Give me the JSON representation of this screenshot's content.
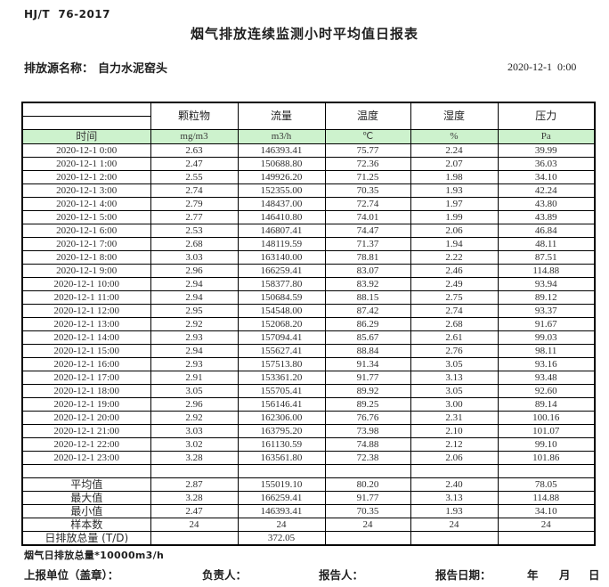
{
  "header": {
    "standard": "HJ/T  76-2017",
    "title": "烟气排放连续监测小时平均值日报表",
    "source_label": "排放源名称：",
    "source_name": "自力水泥窑头",
    "datetime": "2020-12-1  0:00"
  },
  "table": {
    "time_header": "时间",
    "columns": [
      {
        "name": "颗粒物",
        "unit": "mg/m3"
      },
      {
        "name": "流量",
        "unit": "m3/h"
      },
      {
        "name": "温度",
        "unit": "℃"
      },
      {
        "name": "湿度",
        "unit": "%"
      },
      {
        "name": "压力",
        "unit": "Pa"
      }
    ],
    "rows": [
      {
        "time": "2020-12-1 0:00",
        "values": [
          "2.63",
          "146393.41",
          "75.77",
          "2.24",
          "39.99"
        ]
      },
      {
        "time": "2020-12-1 1:00",
        "values": [
          "2.47",
          "150688.80",
          "72.36",
          "2.07",
          "36.03"
        ]
      },
      {
        "time": "2020-12-1 2:00",
        "values": [
          "2.55",
          "149926.20",
          "71.25",
          "1.98",
          "34.10"
        ]
      },
      {
        "time": "2020-12-1 3:00",
        "values": [
          "2.74",
          "152355.00",
          "70.35",
          "1.93",
          "42.24"
        ]
      },
      {
        "time": "2020-12-1 4:00",
        "values": [
          "2.79",
          "148437.00",
          "72.74",
          "1.97",
          "43.80"
        ]
      },
      {
        "time": "2020-12-1 5:00",
        "values": [
          "2.77",
          "146410.80",
          "74.01",
          "1.99",
          "43.89"
        ]
      },
      {
        "time": "2020-12-1 6:00",
        "values": [
          "2.53",
          "146807.41",
          "74.47",
          "2.06",
          "46.84"
        ]
      },
      {
        "time": "2020-12-1 7:00",
        "values": [
          "2.68",
          "148119.59",
          "71.37",
          "1.94",
          "48.11"
        ]
      },
      {
        "time": "2020-12-1 8:00",
        "values": [
          "3.03",
          "163140.00",
          "78.81",
          "2.22",
          "87.51"
        ]
      },
      {
        "time": "2020-12-1 9:00",
        "values": [
          "2.96",
          "166259.41",
          "83.07",
          "2.46",
          "114.88"
        ]
      },
      {
        "time": "2020-12-1 10:00",
        "values": [
          "2.94",
          "158377.80",
          "83.92",
          "2.49",
          "93.94"
        ]
      },
      {
        "time": "2020-12-1 11:00",
        "values": [
          "2.94",
          "150684.59",
          "88.15",
          "2.75",
          "89.12"
        ]
      },
      {
        "time": "2020-12-1 12:00",
        "values": [
          "2.95",
          "154548.00",
          "87.42",
          "2.74",
          "93.37"
        ]
      },
      {
        "time": "2020-12-1 13:00",
        "values": [
          "2.92",
          "152068.20",
          "86.29",
          "2.68",
          "91.67"
        ]
      },
      {
        "time": "2020-12-1 14:00",
        "values": [
          "2.93",
          "157094.41",
          "85.67",
          "2.61",
          "99.03"
        ]
      },
      {
        "time": "2020-12-1 15:00",
        "values": [
          "2.94",
          "155627.41",
          "88.84",
          "2.76",
          "98.11"
        ]
      },
      {
        "time": "2020-12-1 16:00",
        "values": [
          "2.93",
          "157513.80",
          "91.34",
          "3.05",
          "93.16"
        ]
      },
      {
        "time": "2020-12-1 17:00",
        "values": [
          "2.91",
          "153361.20",
          "91.77",
          "3.13",
          "93.48"
        ]
      },
      {
        "time": "2020-12-1 18:00",
        "values": [
          "3.05",
          "155705.41",
          "89.92",
          "3.05",
          "92.60"
        ]
      },
      {
        "time": "2020-12-1 19:00",
        "values": [
          "2.96",
          "156146.41",
          "89.25",
          "3.00",
          "89.14"
        ]
      },
      {
        "time": "2020-12-1 20:00",
        "values": [
          "2.92",
          "162306.00",
          "76.76",
          "2.31",
          "100.16"
        ]
      },
      {
        "time": "2020-12-1 21:00",
        "values": [
          "3.03",
          "163795.20",
          "73.98",
          "2.10",
          "101.07"
        ]
      },
      {
        "time": "2020-12-1 22:00",
        "values": [
          "3.02",
          "161130.59",
          "74.88",
          "2.12",
          "99.10"
        ]
      },
      {
        "time": "2020-12-1 23:00",
        "values": [
          "3.28",
          "163561.80",
          "72.38",
          "2.06",
          "101.86"
        ]
      }
    ],
    "summary": [
      {
        "name": "spacer-row",
        "label": "",
        "values": [
          "",
          "",
          "",
          "",
          ""
        ]
      },
      {
        "name": "average-row",
        "label": "平均值",
        "values": [
          "2.87",
          "155019.10",
          "80.20",
          "2.40",
          "78.05"
        ]
      },
      {
        "name": "max-row",
        "label": "最大值",
        "values": [
          "3.28",
          "166259.41",
          "91.77",
          "3.13",
          "114.88"
        ]
      },
      {
        "name": "min-row",
        "label": "最小值",
        "values": [
          "2.47",
          "146393.41",
          "70.35",
          "1.93",
          "34.10"
        ]
      },
      {
        "name": "sample-count-row",
        "label": "样本数",
        "values": [
          "24",
          "24",
          "24",
          "24",
          "24"
        ]
      },
      {
        "name": "daily-total-row",
        "label": "日排放总量 (T/D)",
        "align": "left",
        "values": [
          "",
          "372.05",
          "",
          "",
          ""
        ]
      }
    ]
  },
  "footer": {
    "note": "烟气日排放总量*10000m3/h",
    "report_unit_label": "上报单位（盖章）：",
    "responsible_label": "负责人：",
    "reporter_label": "报告人：",
    "report_date_label": "报告日期：",
    "year_label": "年",
    "month_label": "月",
    "day_label": "日"
  },
  "colors": {
    "header_green": "#cdf2cd",
    "border": "#000000",
    "text": "#2e2e2e"
  }
}
